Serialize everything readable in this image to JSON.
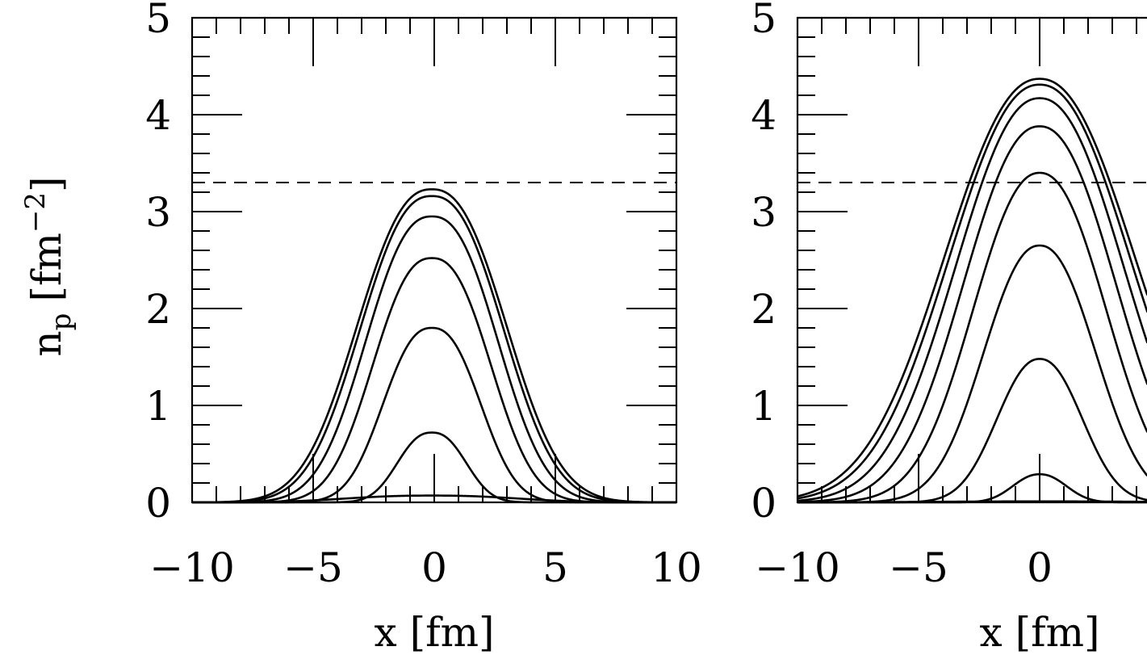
{
  "chart_data": [
    {
      "type": "line",
      "panel": "left",
      "xlabel": "x [fm]",
      "ylabel": "n",
      "ylabel_sub": "p",
      "ylabel_unit": "[fm",
      "ylabel_exp": "−2",
      "ylabel_close": "]",
      "xlim": [
        -10,
        10
      ],
      "ylim": [
        0,
        5
      ],
      "xticks": [
        "−10",
        "−5",
        "0",
        "5",
        "10"
      ],
      "yticks": [
        "0",
        "1",
        "2",
        "3",
        "4",
        "5"
      ],
      "grid": false,
      "reference_line": {
        "y": 3.3,
        "style": "dashed"
      },
      "curve_shape": {
        "center": -0.1,
        "exponent": 2.4
      },
      "series": [
        {
          "peak": 0.07,
          "halfwidth": 6.0
        },
        {
          "peak": 0.72,
          "halfwidth": 2.4
        },
        {
          "peak": 1.8,
          "halfwidth": 3.4
        },
        {
          "peak": 2.52,
          "halfwidth": 4.1
        },
        {
          "peak": 2.95,
          "halfwidth": 4.6
        },
        {
          "peak": 3.16,
          "halfwidth": 5.0
        },
        {
          "peak": 3.23,
          "halfwidth": 5.2
        }
      ]
    },
    {
      "type": "line",
      "panel": "right",
      "xlabel": "x [fm]",
      "xlim": [
        -10,
        10
      ],
      "ylim": [
        0,
        5
      ],
      "xticks": [
        "−10",
        "−5",
        "0"
      ],
      "yticks": [
        "0",
        "1",
        "2",
        "3",
        "4",
        "5"
      ],
      "grid": false,
      "reference_line": {
        "y": 3.3,
        "style": "dashed"
      },
      "curve_shape": {
        "center": 0.0,
        "exponent": 2.2
      },
      "series": [
        {
          "peak": 0.01,
          "halfwidth": 8.0
        },
        {
          "peak": 0.29,
          "halfwidth": 2.0
        },
        {
          "peak": 1.48,
          "halfwidth": 3.2
        },
        {
          "peak": 2.65,
          "halfwidth": 4.2
        },
        {
          "peak": 3.4,
          "halfwidth": 5.0
        },
        {
          "peak": 3.88,
          "halfwidth": 5.7
        },
        {
          "peak": 4.17,
          "halfwidth": 6.3
        },
        {
          "peak": 4.31,
          "halfwidth": 6.8
        },
        {
          "peak": 4.37,
          "halfwidth": 7.1
        }
      ]
    }
  ]
}
